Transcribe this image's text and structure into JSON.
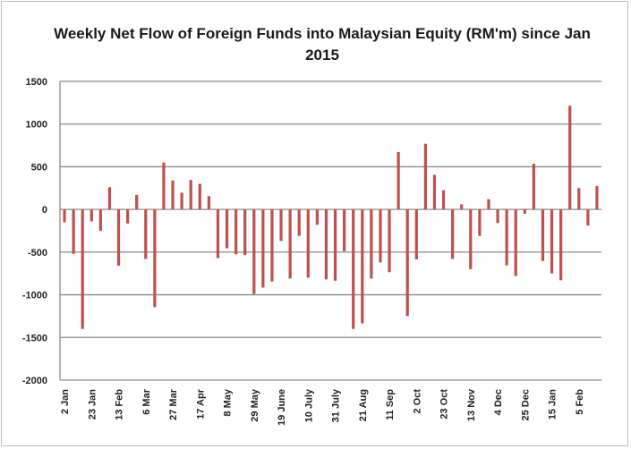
{
  "chart_data": {
    "type": "bar",
    "title": "Weekly Net Flow of Foreign Funds into Malaysian Equity (RM'm) since Jan 2015",
    "xlabel": "",
    "ylabel": "",
    "ylim": [
      -2000,
      1500
    ],
    "yticks": [
      1500,
      1000,
      500,
      0,
      -500,
      -1000,
      -1500,
      -2000
    ],
    "grid": true,
    "legend": "none",
    "bar_color": "#c0504d",
    "tick_labels": [
      "2 Jan",
      "23 Jan",
      "13 Feb",
      "6 Mar",
      "27 Mar",
      "17 Apr",
      "8 May",
      "29 May",
      "19 June",
      "10 July",
      "31 July",
      "21 Aug",
      "11 Sep",
      "2 Oct",
      "23 Oct",
      "13 Nov",
      "4 Dec",
      "25 Dec",
      "15 Jan",
      "5 Feb"
    ],
    "tick_every": 3,
    "values": [
      -150,
      -520,
      -1400,
      -140,
      -250,
      260,
      -660,
      -165,
      170,
      -580,
      -1145,
      550,
      340,
      195,
      345,
      300,
      155,
      -570,
      -455,
      -525,
      -535,
      -990,
      -915,
      -845,
      -370,
      -810,
      -310,
      -800,
      -180,
      -820,
      -835,
      -490,
      -1400,
      -1335,
      -810,
      -620,
      -735,
      672,
      -1250,
      -585,
      770,
      405,
      225,
      -580,
      60,
      -700,
      -310,
      120,
      -160,
      -655,
      -780,
      -50,
      535,
      -605,
      -750,
      -830,
      1215,
      250,
      -190,
      275
    ]
  }
}
